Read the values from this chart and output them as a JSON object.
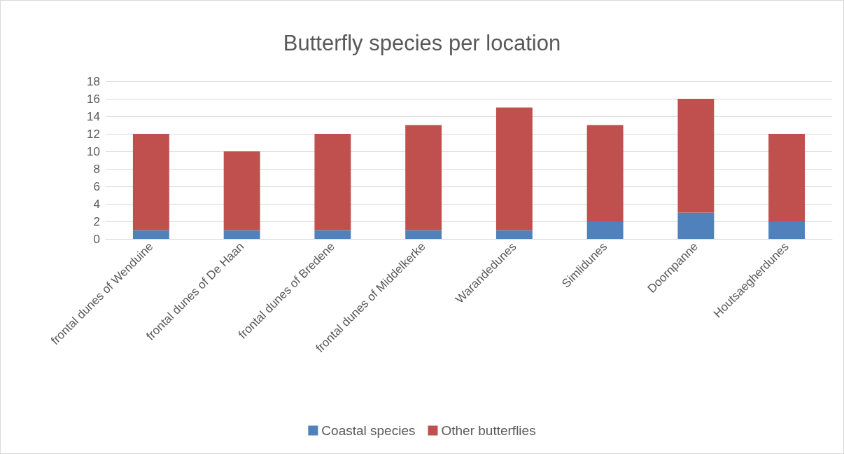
{
  "chart_data": {
    "type": "bar",
    "title": "Butterfly species per location",
    "categories": [
      "frontal dunes of Wenduine",
      "frontal dunes of De Haan",
      "frontal dunes of Bredene",
      "frontal dunes of Middelkerke",
      "Warandedunes",
      "Simlidunes",
      "Doornpanne",
      "Houtsaegherdunes"
    ],
    "series": [
      {
        "name": "Coastal species",
        "color": "#4f81bd",
        "values": [
          1,
          1,
          1,
          1,
          1,
          2,
          3,
          2
        ]
      },
      {
        "name": "Other butterflies",
        "color": "#c0504d",
        "values": [
          11,
          9,
          11,
          12,
          14,
          11,
          13,
          10
        ]
      }
    ],
    "stacked": true,
    "ylim": [
      0,
      18
    ],
    "yticks": [
      0,
      2,
      4,
      6,
      8,
      10,
      12,
      14,
      16,
      18
    ],
    "grid": "y",
    "legend": "bottom"
  }
}
